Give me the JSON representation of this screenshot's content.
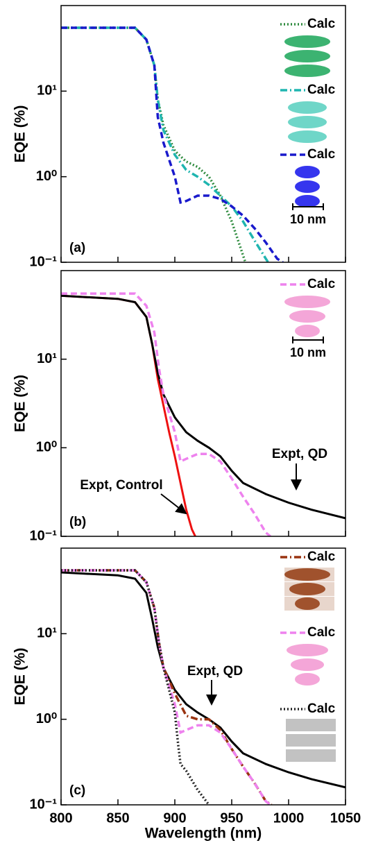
{
  "chart_data": [
    {
      "type": "line",
      "panel_label": "(a)",
      "y_label": "EQE (%)",
      "log_y": true,
      "xlim": [
        800,
        1050
      ],
      "ylim": [
        0.1,
        100
      ],
      "yticks": [
        {
          "value": 0.1,
          "label": "10⁻¹"
        },
        {
          "value": 1,
          "label": "10⁰"
        },
        {
          "value": 10,
          "label": "10¹"
        }
      ],
      "scale_bar_label": "10 nm",
      "series": [
        {
          "name": "Calc",
          "color": "#2e8b3e",
          "dash": "dotted",
          "legend": true,
          "x": [
            800,
            865,
            875,
            882,
            885,
            890,
            900,
            910,
            920,
            930,
            940,
            950,
            960,
            962
          ],
          "values": [
            55,
            55,
            40,
            20,
            8,
            4,
            2,
            1.5,
            1.3,
            1.0,
            0.6,
            0.3,
            0.12,
            0.1
          ]
        },
        {
          "name": "Calc",
          "color": "#1fb5b0",
          "dash": "dashdot",
          "legend": true,
          "x": [
            800,
            865,
            875,
            882,
            885,
            890,
            900,
            910,
            920,
            930,
            940,
            950,
            960,
            970,
            980,
            982
          ],
          "values": [
            55,
            55,
            40,
            20,
            8,
            3.5,
            1.8,
            1.2,
            1.0,
            0.8,
            0.6,
            0.45,
            0.3,
            0.18,
            0.11,
            0.1
          ]
        },
        {
          "name": "Calc",
          "color": "#1a1acc",
          "dash": "dashed",
          "legend": true,
          "x": [
            800,
            865,
            875,
            882,
            885,
            890,
            900,
            905,
            910,
            920,
            930,
            940,
            950,
            960,
            970,
            980,
            990,
            995
          ],
          "values": [
            55,
            55,
            40,
            20,
            5,
            2.5,
            1.0,
            0.5,
            0.52,
            0.6,
            0.6,
            0.55,
            0.45,
            0.35,
            0.25,
            0.17,
            0.11,
            0.1
          ]
        }
      ]
    },
    {
      "type": "line",
      "panel_label": "(b)",
      "y_label": "EQE (%)",
      "log_y": true,
      "xlim": [
        800,
        1050
      ],
      "ylim": [
        0.1,
        100
      ],
      "yticks": [
        {
          "value": 0.1,
          "label": "10⁻¹"
        },
        {
          "value": 1,
          "label": "10⁰"
        },
        {
          "value": 10,
          "label": "10¹"
        }
      ],
      "scale_bar_label": "10 nm",
      "series": [
        {
          "name": "Expt, Control",
          "color": "#ee1111",
          "dash": "solid",
          "legend": false,
          "x": [
            800,
            850,
            865,
            875,
            880,
            885,
            890,
            895,
            900,
            905,
            910,
            915,
            918
          ],
          "values": [
            52,
            48,
            44,
            30,
            15,
            6,
            3,
            1.5,
            0.8,
            0.4,
            0.2,
            0.12,
            0.1
          ]
        },
        {
          "name": "Expt, QD",
          "color": "#000000",
          "dash": "solid",
          "legend": false,
          "x": [
            800,
            850,
            865,
            875,
            880,
            885,
            890,
            900,
            910,
            920,
            930,
            940,
            950,
            960,
            980,
            1000,
            1020,
            1050
          ],
          "values": [
            52,
            48,
            44,
            30,
            15,
            7,
            4,
            2.2,
            1.5,
            1.2,
            1.0,
            0.8,
            0.55,
            0.4,
            0.3,
            0.24,
            0.2,
            0.16
          ]
        },
        {
          "name": "Calc",
          "color": "#ee82ee",
          "dash": "dashed",
          "legend": true,
          "x": [
            800,
            865,
            875,
            882,
            886,
            890,
            900,
            905,
            910,
            920,
            930,
            940,
            950,
            960,
            970,
            980,
            984
          ],
          "values": [
            55,
            55,
            40,
            20,
            8,
            4,
            1.5,
            0.7,
            0.75,
            0.85,
            0.85,
            0.7,
            0.45,
            0.28,
            0.18,
            0.11,
            0.1
          ]
        }
      ]
    },
    {
      "type": "line",
      "panel_label": "(c)",
      "y_label": "EQE (%)",
      "x_label": "Wavelength (nm)",
      "log_y": true,
      "xlim": [
        800,
        1050
      ],
      "ylim": [
        0.1,
        100
      ],
      "xticks": [
        800,
        850,
        900,
        950,
        1000,
        1050
      ],
      "yticks": [
        {
          "value": 0.1,
          "label": "10⁻¹"
        },
        {
          "value": 1,
          "label": "10⁰"
        },
        {
          "value": 10,
          "label": "10¹"
        }
      ],
      "series": [
        {
          "name": "Expt, QD",
          "color": "#000000",
          "dash": "solid",
          "legend": false,
          "x": [
            800,
            850,
            865,
            875,
            880,
            885,
            890,
            900,
            910,
            920,
            930,
            940,
            950,
            960,
            980,
            1000,
            1020,
            1050
          ],
          "values": [
            52,
            48,
            44,
            30,
            15,
            7,
            4,
            2.2,
            1.5,
            1.2,
            1.0,
            0.8,
            0.55,
            0.4,
            0.3,
            0.24,
            0.2,
            0.16
          ]
        },
        {
          "name": "Calc",
          "color": "#993311",
          "dash": "dashdot",
          "legend": true,
          "x": [
            800,
            865,
            875,
            882,
            886,
            890,
            900,
            910,
            920,
            930,
            940,
            950,
            960,
            970,
            980,
            985
          ],
          "values": [
            55,
            55,
            40,
            20,
            8,
            4,
            2,
            1.1,
            1.0,
            1.0,
            0.75,
            0.45,
            0.28,
            0.18,
            0.11,
            0.1
          ]
        },
        {
          "name": "Calc",
          "color": "#ee82ee",
          "dash": "dashed",
          "legend": true,
          "x": [
            800,
            865,
            875,
            882,
            886,
            890,
            900,
            905,
            910,
            920,
            930,
            940,
            950,
            960,
            970,
            980,
            984
          ],
          "values": [
            55,
            55,
            40,
            20,
            8,
            4,
            1.5,
            0.7,
            0.75,
            0.85,
            0.85,
            0.7,
            0.45,
            0.28,
            0.18,
            0.11,
            0.1
          ]
        },
        {
          "name": "Calc",
          "color": "#222222",
          "dash": "dotted",
          "legend": true,
          "x": [
            800,
            865,
            875,
            882,
            886,
            890,
            900,
            903,
            905,
            910,
            920,
            930
          ],
          "values": [
            55,
            55,
            40,
            20,
            8,
            4,
            1.2,
            0.5,
            0.3,
            0.25,
            0.15,
            0.1
          ]
        }
      ]
    }
  ]
}
